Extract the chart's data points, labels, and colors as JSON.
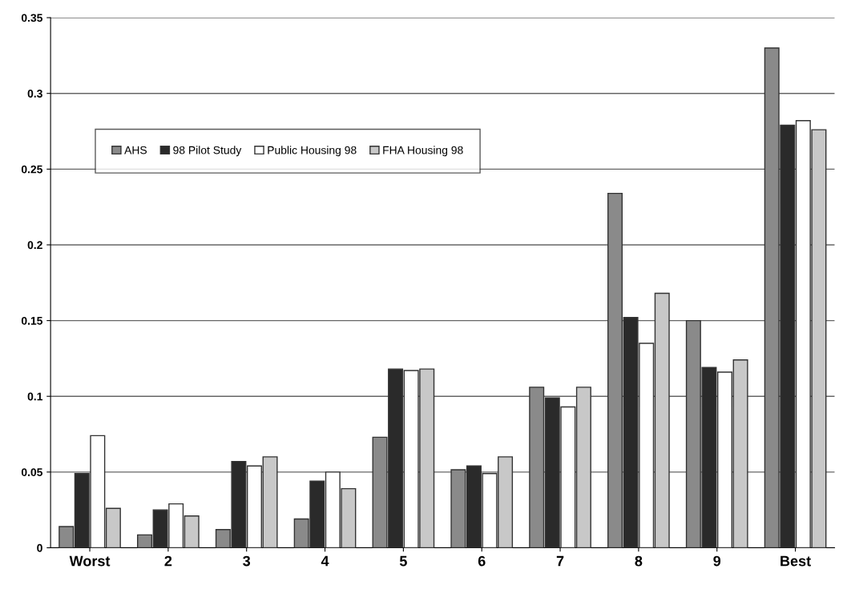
{
  "chart_data": {
    "type": "bar",
    "categories": [
      "Worst",
      "2",
      "3",
      "4",
      "5",
      "6",
      "7",
      "8",
      "9",
      "Best"
    ],
    "series": [
      {
        "name": "AHS",
        "color": "#8a8a8a",
        "values": [
          0.014,
          0.0085,
          0.012,
          0.019,
          0.073,
          0.0515,
          0.106,
          0.234,
          0.15,
          0.33
        ]
      },
      {
        "name": "98 Pilot Study",
        "color": "#2a2a2a",
        "values": [
          0.049,
          0.025,
          0.057,
          0.044,
          0.118,
          0.054,
          0.099,
          0.152,
          0.119,
          0.279
        ]
      },
      {
        "name": "Public Housing 98",
        "color": "#ffffff",
        "values": [
          0.074,
          0.029,
          0.054,
          0.05,
          0.117,
          0.049,
          0.093,
          0.135,
          0.116,
          0.282
        ]
      },
      {
        "name": "FHA Housing 98",
        "color": "#c8c8c8",
        "values": [
          0.026,
          0.021,
          0.06,
          0.039,
          0.118,
          0.06,
          0.106,
          0.168,
          0.124,
          0.276
        ]
      }
    ],
    "ylim": [
      0,
      0.35
    ],
    "yticks": [
      0,
      0.05,
      0.1,
      0.15,
      0.2,
      0.25,
      0.3,
      0.35
    ],
    "grid": "y",
    "legend": "top left"
  }
}
